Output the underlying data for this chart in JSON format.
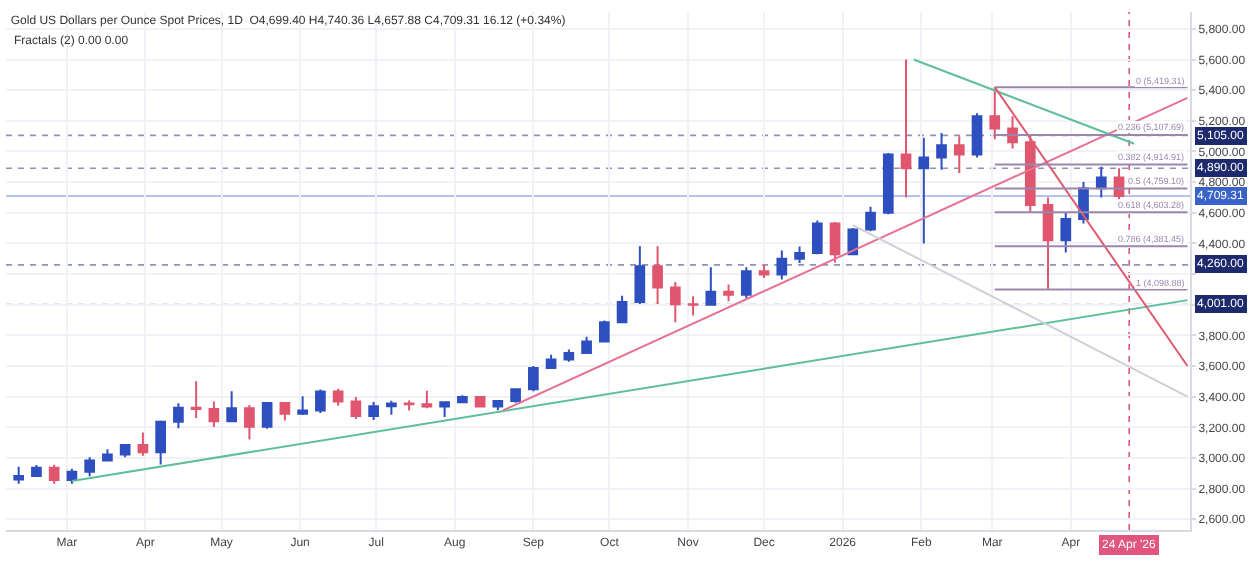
{
  "chart_data": {
    "type": "candlestick",
    "title": "Gold US Dollars per Ounce Spot Prices, 1D  O4,699.40 H4,740.36 L4,657.88 C4,709.31 16.12 (+0.34%)",
    "subtitle": "Fractals (2) 0.00 0.00",
    "x": [
      "2025-02-10",
      "2025-02-17",
      "2025-02-24",
      "2025-03-03",
      "2025-03-10",
      "2025-03-17",
      "2025-03-24",
      "2025-03-31",
      "2025-04-07",
      "2025-04-14",
      "2025-04-21",
      "2025-04-28",
      "2025-05-05",
      "2025-05-12",
      "2025-05-19",
      "2025-05-26",
      "2025-06-02",
      "2025-06-09",
      "2025-06-16",
      "2025-06-23",
      "2025-06-30",
      "2025-07-07",
      "2025-07-14",
      "2025-07-21",
      "2025-07-28",
      "2025-08-04",
      "2025-08-11",
      "2025-08-18",
      "2025-08-25",
      "2025-09-01",
      "2025-09-08",
      "2025-09-15",
      "2025-09-22",
      "2025-09-29",
      "2025-10-06",
      "2025-10-13",
      "2025-10-20",
      "2025-10-27",
      "2025-11-03",
      "2025-11-10",
      "2025-11-17",
      "2025-11-24",
      "2025-12-01",
      "2025-12-08",
      "2025-12-15",
      "2025-12-22",
      "2025-12-29",
      "2026-01-05",
      "2026-01-12",
      "2026-01-19",
      "2026-01-26",
      "2026-02-02",
      "2026-02-09",
      "2026-02-16",
      "2026-02-23",
      "2026-03-02",
      "2026-03-09",
      "2026-03-16",
      "2026-03-23",
      "2026-03-30",
      "2026-04-06",
      "2026-04-13",
      "2026-04-20"
    ],
    "ohlc": [
      [
        2860,
        2942,
        2832,
        2883
      ],
      [
        2883,
        2954,
        2877,
        2936
      ],
      [
        2936,
        2956,
        2832,
        2857
      ],
      [
        2857,
        2930,
        2832,
        2910
      ],
      [
        2910,
        3004,
        2880,
        2984
      ],
      [
        2984,
        3057,
        2982,
        3023
      ],
      [
        3023,
        3086,
        3004,
        3084
      ],
      [
        3084,
        3167,
        3015,
        3037
      ],
      [
        3037,
        3245,
        2957,
        3237
      ],
      [
        3237,
        3357,
        3194,
        3327
      ],
      [
        3327,
        3500,
        3260,
        3319
      ],
      [
        3319,
        3368,
        3202,
        3240
      ],
      [
        3240,
        3435,
        3240,
        3325
      ],
      [
        3325,
        3345,
        3120,
        3203
      ],
      [
        3203,
        3366,
        3190,
        3358
      ],
      [
        3358,
        3365,
        3245,
        3289
      ],
      [
        3289,
        3403,
        3280,
        3310
      ],
      [
        3310,
        3446,
        3293,
        3433
      ],
      [
        3433,
        3452,
        3340,
        3368
      ],
      [
        3368,
        3398,
        3255,
        3274
      ],
      [
        3274,
        3365,
        3247,
        3337
      ],
      [
        3337,
        3374,
        3282,
        3355
      ],
      [
        3355,
        3375,
        3309,
        3350
      ],
      [
        3350,
        3439,
        3324,
        3336
      ],
      [
        3336,
        3363,
        3268,
        3363
      ],
      [
        3363,
        3409,
        3357,
        3398
      ],
      [
        3398,
        3404,
        3331,
        3336
      ],
      [
        3336,
        3379,
        3311,
        3372
      ],
      [
        3372,
        3453,
        3360,
        3448
      ],
      [
        3448,
        3600,
        3436,
        3587
      ],
      [
        3587,
        3674,
        3585,
        3643
      ],
      [
        3643,
        3707,
        3628,
        3685
      ],
      [
        3685,
        3791,
        3685,
        3760
      ],
      [
        3760,
        3897,
        3760,
        3886
      ],
      [
        3886,
        4059,
        3885,
        4018
      ],
      [
        4018,
        4381,
        4004,
        4251
      ],
      [
        4251,
        4381,
        4004,
        4113
      ],
      [
        4113,
        4148,
        3886,
        4003
      ],
      [
        4003,
        4055,
        3930,
        4000
      ],
      [
        4000,
        4245,
        3996,
        4084
      ],
      [
        4084,
        4132,
        4022,
        4065
      ],
      [
        4065,
        4245,
        4040,
        4218
      ],
      [
        4218,
        4264,
        4175,
        4198
      ],
      [
        4198,
        4353,
        4165,
        4300
      ],
      [
        4300,
        4380,
        4272,
        4338
      ],
      [
        4338,
        4550,
        4330,
        4530
      ],
      [
        4530,
        4540,
        4275,
        4330
      ],
      [
        4330,
        4500,
        4330,
        4490
      ],
      [
        4490,
        4640,
        4480,
        4600
      ],
      [
        4600,
        4990,
        4590,
        4980
      ],
      [
        4980,
        5600,
        4700,
        4890
      ],
      [
        4890,
        5090,
        4400,
        4960
      ],
      [
        4960,
        5120,
        4880,
        5040
      ],
      [
        5040,
        5100,
        4860,
        4980
      ],
      [
        4980,
        5250,
        4960,
        5230
      ],
      [
        5230,
        5419,
        5080,
        5150
      ],
      [
        5150,
        5230,
        5020,
        5060
      ],
      [
        5060,
        5100,
        4600,
        4650
      ],
      [
        4650,
        4700,
        4098,
        4420
      ],
      [
        4420,
        4600,
        4340,
        4560
      ],
      [
        4560,
        4800,
        4530,
        4760
      ],
      [
        4760,
        4900,
        4700,
        4830
      ],
      [
        4830,
        4890,
        4657,
        4709
      ]
    ],
    "colors": [
      "#2e4fbf",
      "#2e4fbf",
      "#e0566e",
      "#2e4fbf",
      "#2e4fbf",
      "#2e4fbf",
      "#2e4fbf",
      "#e0566e",
      "#2e4fbf",
      "#2e4fbf",
      "#e0566e",
      "#e0566e",
      "#2e4fbf",
      "#e0566e",
      "#2e4fbf",
      "#e0566e",
      "#2e4fbf",
      "#2e4fbf",
      "#e0566e",
      "#e0566e",
      "#2e4fbf",
      "#2e4fbf",
      "#e0566e",
      "#e0566e",
      "#2e4fbf",
      "#2e4fbf",
      "#e0566e",
      "#2e4fbf",
      "#2e4fbf",
      "#2e4fbf",
      "#2e4fbf",
      "#2e4fbf",
      "#2e4fbf",
      "#2e4fbf",
      "#2e4fbf",
      "#2e4fbf",
      "#e0566e",
      "#e0566e",
      "#e0566e",
      "#2e4fbf",
      "#e0566e",
      "#2e4fbf",
      "#e0566e",
      "#2e4fbf",
      "#2e4fbf",
      "#2e4fbf",
      "#e0566e",
      "#2e4fbf",
      "#2e4fbf",
      "#2e4fbf",
      "#e0566e",
      "#2e4fbf",
      "#2e4fbf",
      "#e0566e",
      "#2e4fbf",
      "#e0566e",
      "#e0566e",
      "#e0566e",
      "#e0566e",
      "#2e4fbf",
      "#2e4fbf",
      "#2e4fbf",
      "#e0566e"
    ],
    "series": [
      {
        "type": "line",
        "color": "#5fbf9a",
        "x": [
          "2025-03-03",
          "2026-05-17"
        ],
        "values": [
          2850,
          4030
        ]
      },
      {
        "type": "line",
        "color": "#e57393",
        "x": [
          "2025-08-20",
          "2026-05-17"
        ],
        "values": [
          3310,
          5350
        ]
      },
      {
        "type": "line",
        "color": "#5fbf9a",
        "x": [
          "2026-01-29",
          "2026-04-26"
        ],
        "values": [
          5600,
          5050
        ]
      },
      {
        "type": "line",
        "color": "#e05a6e",
        "x": [
          "2026-03-02",
          "2026-05-17"
        ],
        "values": [
          5420,
          3600
        ]
      },
      {
        "type": "line",
        "color": "#cfcfd6",
        "x": [
          "2026-01-05",
          "2026-05-17"
        ],
        "values": [
          4520,
          3400
        ]
      },
      {
        "type": "line",
        "color": "#9b86ad",
        "name": "0 (5,419.31)",
        "x": [
          "2026-03-02",
          "2026-05-17"
        ],
        "values": [
          5419.31,
          5419.31
        ]
      },
      {
        "type": "line",
        "color": "#9b86ad",
        "name": "0.236 (5,107.69)",
        "x": [
          "2026-03-02",
          "2026-05-17"
        ],
        "values": [
          5107.69,
          5107.69
        ]
      },
      {
        "type": "line",
        "color": "#9b86ad",
        "name": "0.382 (4,914.91)",
        "x": [
          "2026-03-02",
          "2026-05-17"
        ],
        "values": [
          4914.91,
          4914.91
        ]
      },
      {
        "type": "line",
        "color": "#9b86ad",
        "name": "0.5 (4,759.10)",
        "x": [
          "2026-03-02",
          "2026-05-17"
        ],
        "values": [
          4759.1,
          4759.1
        ]
      },
      {
        "type": "line",
        "color": "#9b86ad",
        "name": "0.618 (4,603.28)",
        "x": [
          "2026-03-02",
          "2026-05-17"
        ],
        "values": [
          4603.28,
          4603.28
        ]
      },
      {
        "type": "line",
        "color": "#9b86ad",
        "name": "0.786 (4,381.45)",
        "x": [
          "2026-03-02",
          "2026-05-17"
        ],
        "values": [
          4381.45,
          4381.45
        ]
      },
      {
        "type": "line",
        "color": "#9b86ad",
        "name": "1 (4,098.88)",
        "x": [
          "2026-03-02",
          "2026-05-17"
        ],
        "values": [
          4098.88,
          4098.88
        ]
      }
    ],
    "ref_lines": [
      {
        "axis": "y",
        "value": 5105.0,
        "label": "5,105.00",
        "color": "#1e2a6e",
        "line_style": "dotted"
      },
      {
        "axis": "y",
        "value": 4890.0,
        "label": "4,890.00",
        "color": "#1e2a6e",
        "line_style": "dotted"
      },
      {
        "axis": "y",
        "value": 4709.31,
        "label": "4,709.31",
        "color": "#3a63c9",
        "line_style": "solid"
      },
      {
        "axis": "y",
        "value": 4260.0,
        "label": "4,260.00",
        "color": "#1e2a6e",
        "line_style": "dotted"
      },
      {
        "axis": "y",
        "value": 4001.0,
        "label": "4,001.00",
        "color": "#1e2a6e",
        "line_style": "dotted"
      },
      {
        "axis": "x",
        "value": "2026-04-24",
        "label": "24 Apr '26",
        "color": "#e0567e",
        "line_style": "dotted"
      }
    ],
    "xlim": [
      "2025-02-05",
      "2026-05-18"
    ],
    "xticks": [
      {
        "value": "2025-03-01",
        "label": "Mar"
      },
      {
        "value": "2025-04-01",
        "label": "Apr"
      },
      {
        "value": "2025-05-01",
        "label": "May"
      },
      {
        "value": "2025-06-01",
        "label": "Jun"
      },
      {
        "value": "2025-07-01",
        "label": "Jul"
      },
      {
        "value": "2025-08-01",
        "label": "Aug"
      },
      {
        "value": "2025-09-01",
        "label": "Sep"
      },
      {
        "value": "2025-10-01",
        "label": "Oct"
      },
      {
        "value": "2025-11-01",
        "label": "Nov"
      },
      {
        "value": "2025-12-01",
        "label": "Dec"
      },
      {
        "value": "2026-01-01",
        "label": "2026"
      },
      {
        "value": "2026-02-01",
        "label": "Feb"
      },
      {
        "value": "2026-03-01",
        "label": "Mar"
      },
      {
        "value": "2026-04-01",
        "label": "Apr"
      }
    ],
    "ylim": [
      2530,
      5910
    ],
    "yticks": [
      {
        "value": 2600,
        "label": "2,600.00"
      },
      {
        "value": 2800,
        "label": "2,800.00"
      },
      {
        "value": 3000,
        "label": "3,000.00"
      },
      {
        "value": 3200,
        "label": "3,200.00"
      },
      {
        "value": 3400,
        "label": "3,400.00"
      },
      {
        "value": 3600,
        "label": "3,600.00"
      },
      {
        "value": 3800,
        "label": "3,800.00"
      },
      {
        "value": 4000,
        "label": null
      },
      {
        "value": 4200,
        "label": null
      },
      {
        "value": 4400,
        "label": "4,400.00"
      },
      {
        "value": 4600,
        "label": "4,600.00"
      },
      {
        "value": 4800,
        "label": "4,800.00"
      },
      {
        "value": 5000,
        "label": "5,000.00"
      },
      {
        "value": 5200,
        "label": "5,200.00"
      },
      {
        "value": 5400,
        "label": "5,400.00"
      },
      {
        "value": 5600,
        "label": "5,600.00"
      },
      {
        "value": 5800,
        "label": "5,800.00"
      }
    ],
    "grid": true
  }
}
